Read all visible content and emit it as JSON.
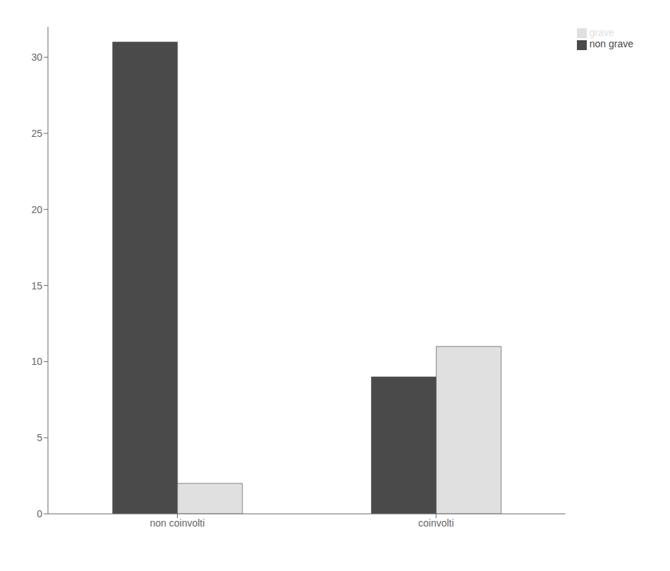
{
  "chart_data": {
    "type": "bar",
    "categories": [
      "non coinvolti",
      "coinvolti"
    ],
    "series": [
      {
        "name": "non grave",
        "color": "#4a4a4a",
        "values": [
          31,
          9
        ]
      },
      {
        "name": "grave",
        "color": "#e0e0e0",
        "values": [
          2,
          11
        ]
      }
    ],
    "ylim": [
      0,
      32
    ],
    "yticks": [
      0,
      5,
      10,
      15,
      20,
      25,
      30
    ],
    "grid": false,
    "legend": "upper right"
  }
}
